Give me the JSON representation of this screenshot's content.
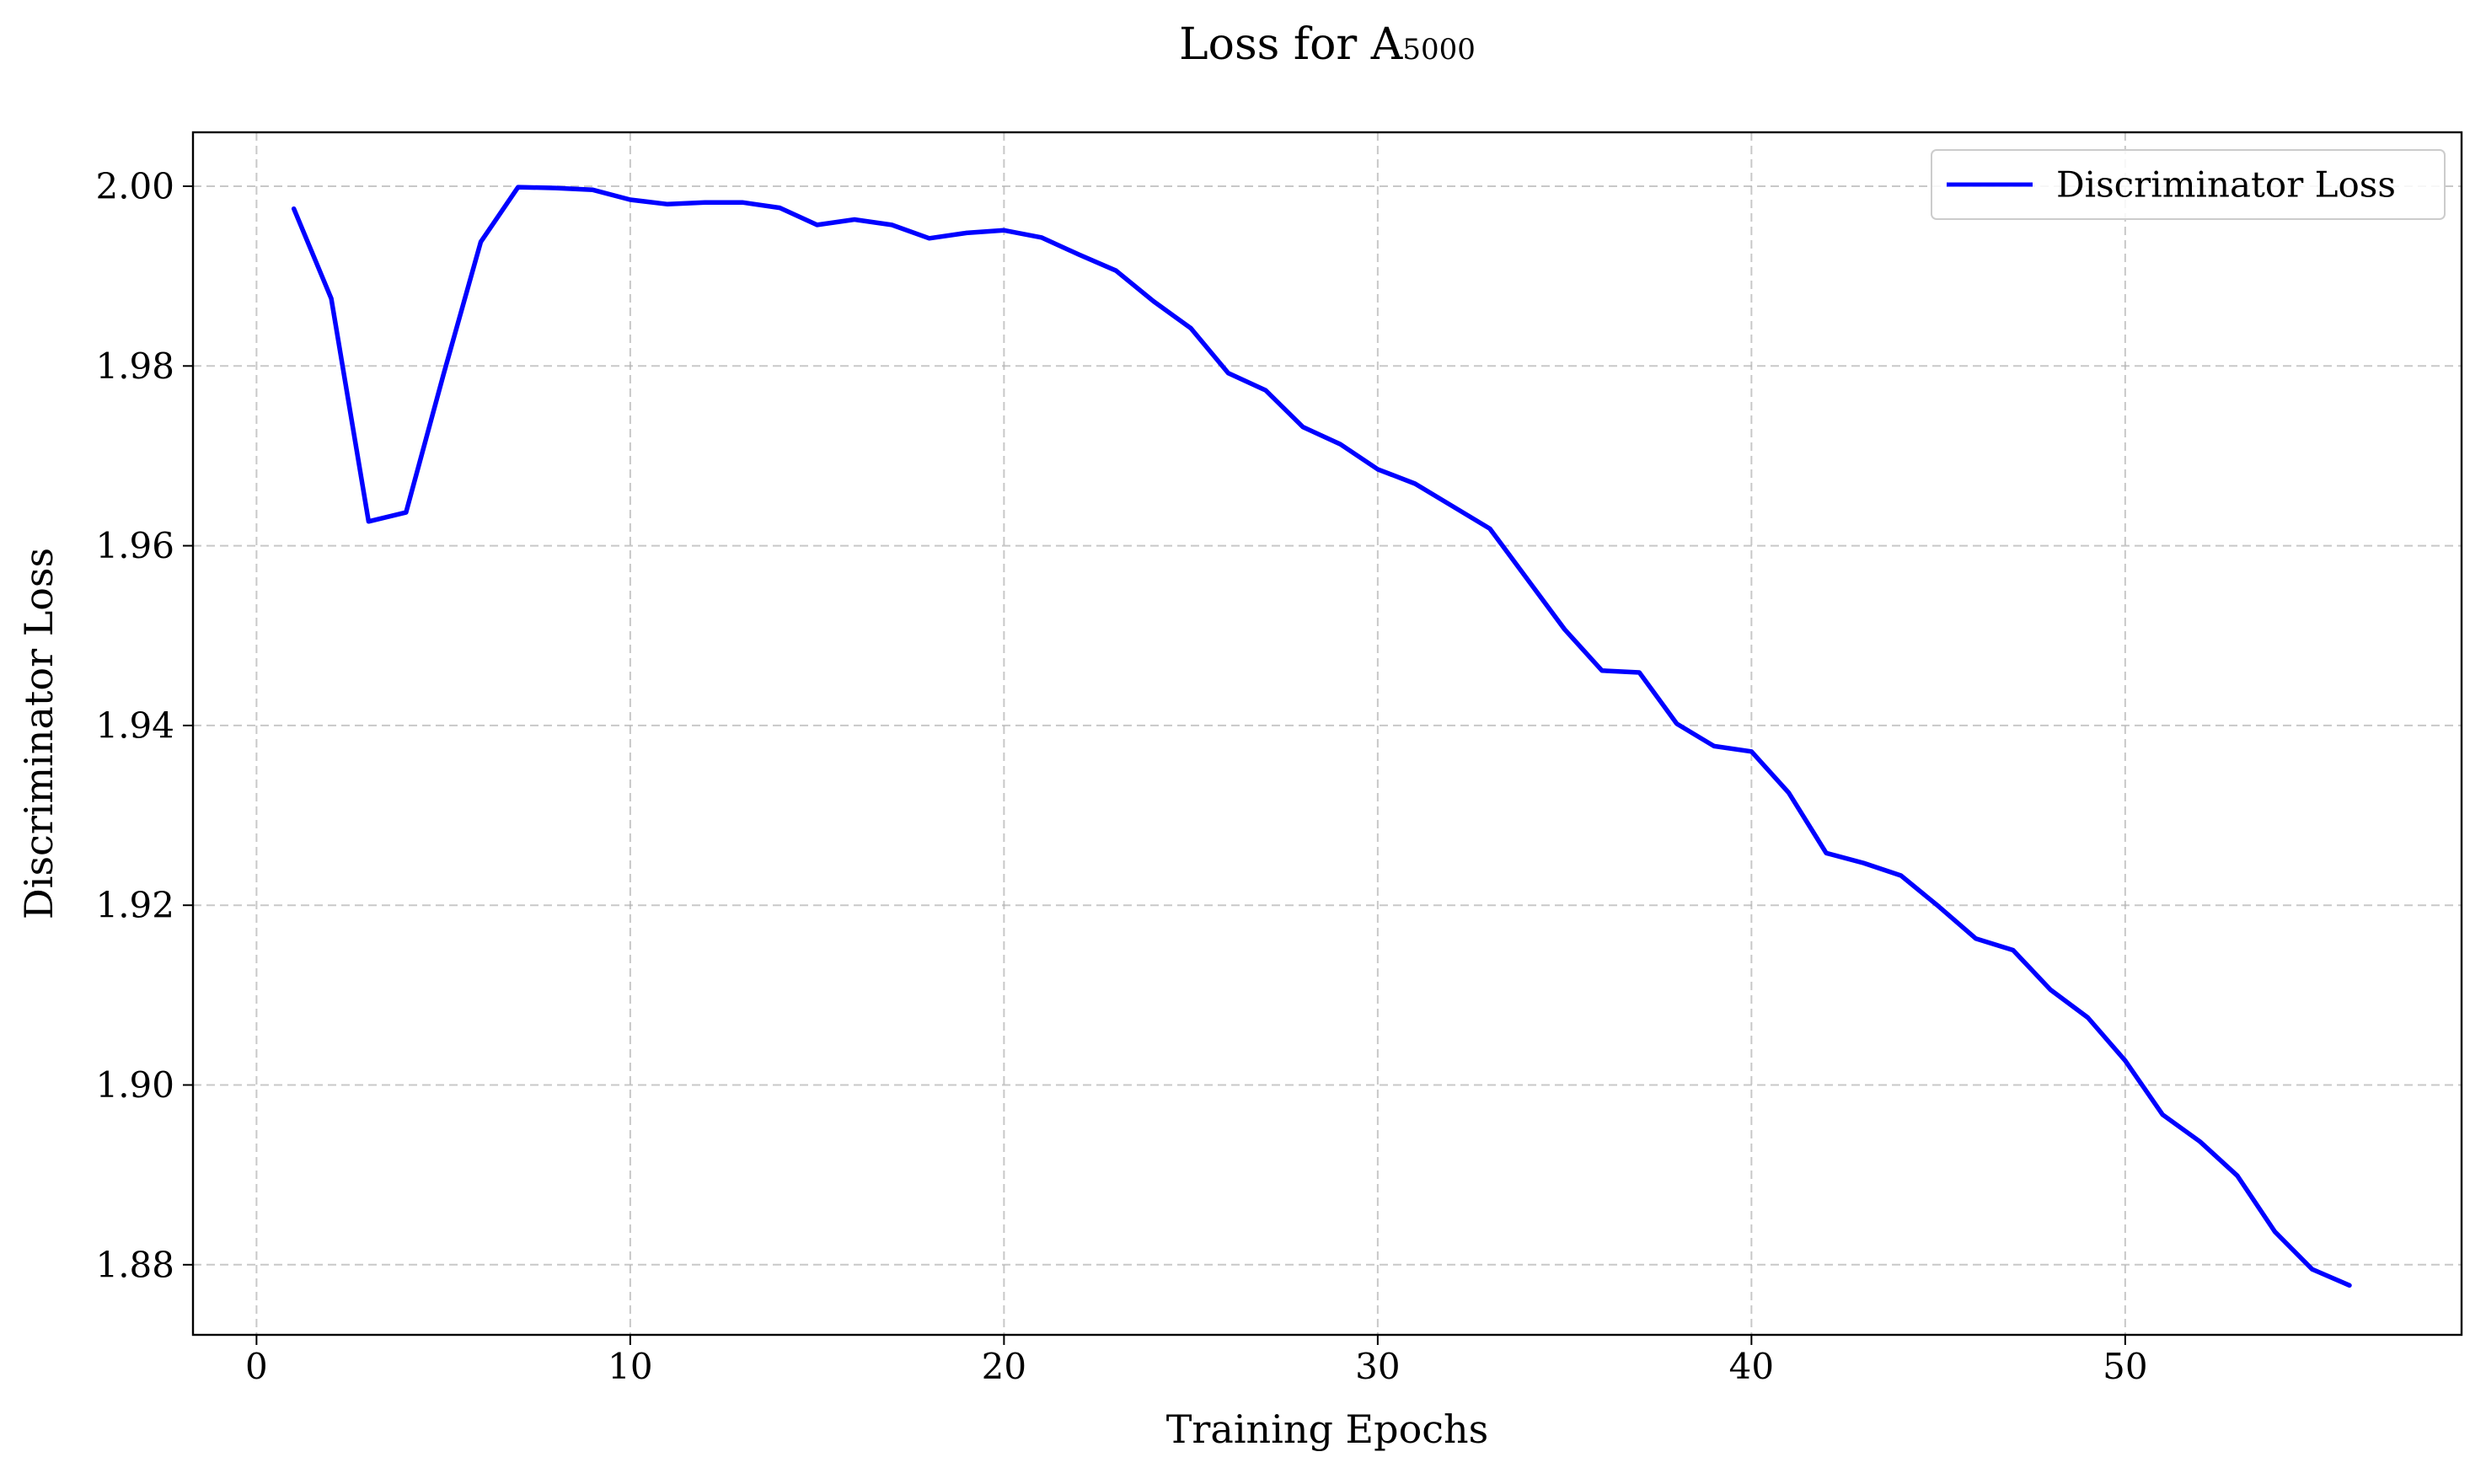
{
  "chart_data": {
    "type": "line",
    "title_main": "Loss for A",
    "title_sub": "5000",
    "xlabel": "Training Epochs",
    "ylabel": "Discriminator Loss",
    "xlim": [
      -1.7,
      59.0
    ],
    "ylim": [
      1.8722,
      2.006
    ],
    "xticks": [
      0,
      10,
      20,
      30,
      40,
      50
    ],
    "xtick_labels": [
      "0",
      "10",
      "20",
      "30",
      "40",
      "50"
    ],
    "yticks": [
      1.88,
      1.9,
      1.92,
      1.94,
      1.96,
      1.98,
      2.0
    ],
    "ytick_labels": [
      "1.88",
      "1.90",
      "1.92",
      "1.94",
      "1.96",
      "1.98",
      "2.00"
    ],
    "grid": true,
    "legend_position": "top-right",
    "series": [
      {
        "name": "Discriminator Loss",
        "color": "#0000ff",
        "x": [
          1,
          2,
          3,
          4,
          5,
          6,
          7,
          8,
          9,
          10,
          11,
          12,
          13,
          14,
          15,
          16,
          17,
          18,
          19,
          20,
          21,
          22,
          23,
          24,
          25,
          26,
          27,
          28,
          29,
          30,
          31,
          32,
          33,
          34,
          35,
          36,
          37,
          38,
          39,
          40,
          41,
          42,
          43,
          44,
          45,
          46,
          47,
          48,
          49,
          50,
          51,
          52,
          53,
          54,
          55,
          56
        ],
        "values": [
          1.9975,
          1.9875,
          1.9627,
          1.9637,
          1.979,
          1.9938,
          1.9999,
          1.9998,
          1.9996,
          1.9985,
          1.998,
          1.9982,
          1.9982,
          1.9976,
          1.9957,
          1.9963,
          1.9957,
          1.9942,
          1.9948,
          1.9951,
          1.9943,
          1.9924,
          1.9906,
          1.9872,
          1.9842,
          1.9792,
          1.9773,
          1.9732,
          1.9713,
          1.9685,
          1.9669,
          1.9644,
          1.9619,
          1.9563,
          1.9507,
          1.9461,
          1.9459,
          1.9402,
          1.9377,
          1.9371,
          1.9325,
          1.9258,
          1.9247,
          1.9233,
          1.9199,
          1.9163,
          1.915,
          1.9106,
          1.9075,
          1.9027,
          1.8967,
          1.8937,
          1.8899,
          1.8837,
          1.8795,
          1.8777
        ]
      }
    ]
  }
}
